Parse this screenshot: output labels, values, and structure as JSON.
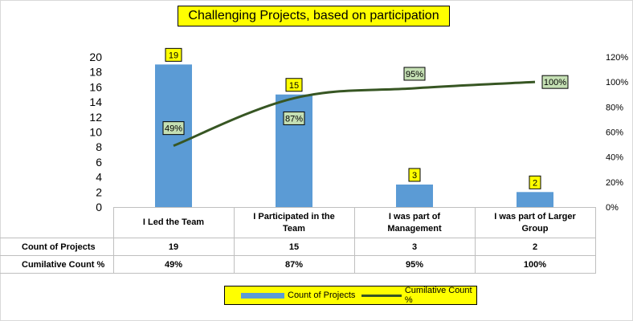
{
  "colors": {
    "bar": "#5b9bd5",
    "line": "#375623",
    "title_bg": "#ffff00",
    "bar_label_bg": "#ffff00",
    "line_label_bg": "#c5e0b4"
  },
  "chart_data": {
    "type": "bar",
    "title": "Challenging Projects, based on participation",
    "categories": [
      "I Led the Team",
      "I Participated in the Team",
      "I was part of Management",
      "I was part of Larger Group"
    ],
    "category_lines": [
      [
        "I Led the Team"
      ],
      [
        "I Participated in the",
        "Team"
      ],
      [
        "I was part of",
        "Management"
      ],
      [
        "I was part of Larger",
        "Group"
      ]
    ],
    "series": [
      {
        "name": "Count of Projects",
        "type": "bar",
        "axis": "left",
        "values": [
          19,
          15,
          3,
          2
        ],
        "labels": [
          "19",
          "15",
          "3",
          "2"
        ]
      },
      {
        "name": "Cumilative Count %",
        "type": "line",
        "axis": "right",
        "values": [
          49,
          87,
          95,
          100
        ],
        "labels": [
          "49%",
          "87%",
          "95%",
          "100%"
        ]
      }
    ],
    "y_left": {
      "min": 0,
      "max": 20,
      "step": 2,
      "ticks": [
        "0",
        "2",
        "4",
        "6",
        "8",
        "10",
        "12",
        "14",
        "16",
        "18",
        "20"
      ]
    },
    "y_right": {
      "min": 0,
      "max": 120,
      "step": 20,
      "ticks": [
        "0%",
        "20%",
        "40%",
        "60%",
        "80%",
        "100%",
        "120%"
      ]
    },
    "grid": false,
    "legend": "bottom",
    "data_table": {
      "rows": [
        {
          "label": "Count of Projects",
          "values": [
            "19",
            "15",
            "3",
            "2"
          ]
        },
        {
          "label": "Cumilative Count %",
          "values": [
            "49%",
            "87%",
            "95%",
            "100%"
          ]
        }
      ]
    }
  }
}
